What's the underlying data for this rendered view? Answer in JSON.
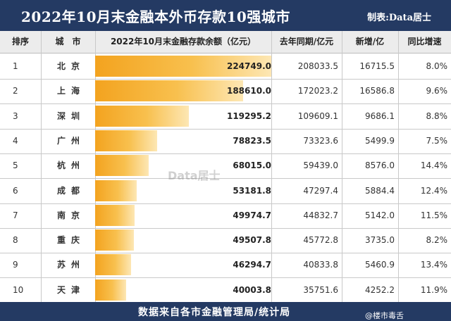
{
  "title": "2022年10月末金融本外币存款10强城市",
  "credit": "制表:Data居士",
  "headers": {
    "rank": "排序",
    "city": "城　市",
    "deposit": "2022年10月末金融存款余额（亿元）",
    "prev_year": "去年同期/亿元",
    "increase": "新增/亿",
    "yoy": "同比增速"
  },
  "watermark": "Data居士",
  "footer": "数据来自各市金融管理局/统计局",
  "corner_logo": "@楼市毒舌",
  "colors": {
    "header_bg": "#243a63",
    "bar": "#f3a31f"
  },
  "chart_data": {
    "type": "table",
    "max_value": 224749.0,
    "columns": [
      "排序",
      "城市",
      "2022年10月末金融存款余额（亿元）",
      "去年同期/亿元",
      "新增/亿",
      "同比增速"
    ],
    "rows": [
      {
        "rank": "1",
        "city": "北京",
        "deposit": 224749.0,
        "deposit_text": "224749.0",
        "prev_year": "208033.5",
        "increase": "16715.5",
        "yoy": "8.0%"
      },
      {
        "rank": "2",
        "city": "上海",
        "deposit": 188610.0,
        "deposit_text": "188610.0",
        "prev_year": "172023.2",
        "increase": "16586.8",
        "yoy": "9.6%"
      },
      {
        "rank": "3",
        "city": "深圳",
        "deposit": 119295.2,
        "deposit_text": "119295.2",
        "prev_year": "109609.1",
        "increase": "9686.1",
        "yoy": "8.8%"
      },
      {
        "rank": "4",
        "city": "广州",
        "deposit": 78823.5,
        "deposit_text": "78823.5",
        "prev_year": "73323.6",
        "increase": "5499.9",
        "yoy": "7.5%"
      },
      {
        "rank": "5",
        "city": "杭州",
        "deposit": 68015.0,
        "deposit_text": "68015.0",
        "prev_year": "59439.0",
        "increase": "8576.0",
        "yoy": "14.4%"
      },
      {
        "rank": "6",
        "city": "成都",
        "deposit": 53181.8,
        "deposit_text": "53181.8",
        "prev_year": "47297.4",
        "increase": "5884.4",
        "yoy": "12.4%"
      },
      {
        "rank": "7",
        "city": "南京",
        "deposit": 49974.7,
        "deposit_text": "49974.7",
        "prev_year": "44832.7",
        "increase": "5142.0",
        "yoy": "11.5%"
      },
      {
        "rank": "8",
        "city": "重庆",
        "deposit": 49507.8,
        "deposit_text": "49507.8",
        "prev_year": "45772.8",
        "increase": "3735.0",
        "yoy": "8.2%"
      },
      {
        "rank": "9",
        "city": "苏州",
        "deposit": 46294.7,
        "deposit_text": "46294.7",
        "prev_year": "40833.8",
        "increase": "5460.9",
        "yoy": "13.4%"
      },
      {
        "rank": "10",
        "city": "天津",
        "deposit": 40003.8,
        "deposit_text": "40003.8",
        "prev_year": "35751.6",
        "increase": "4252.2",
        "yoy": "11.9%"
      }
    ]
  }
}
